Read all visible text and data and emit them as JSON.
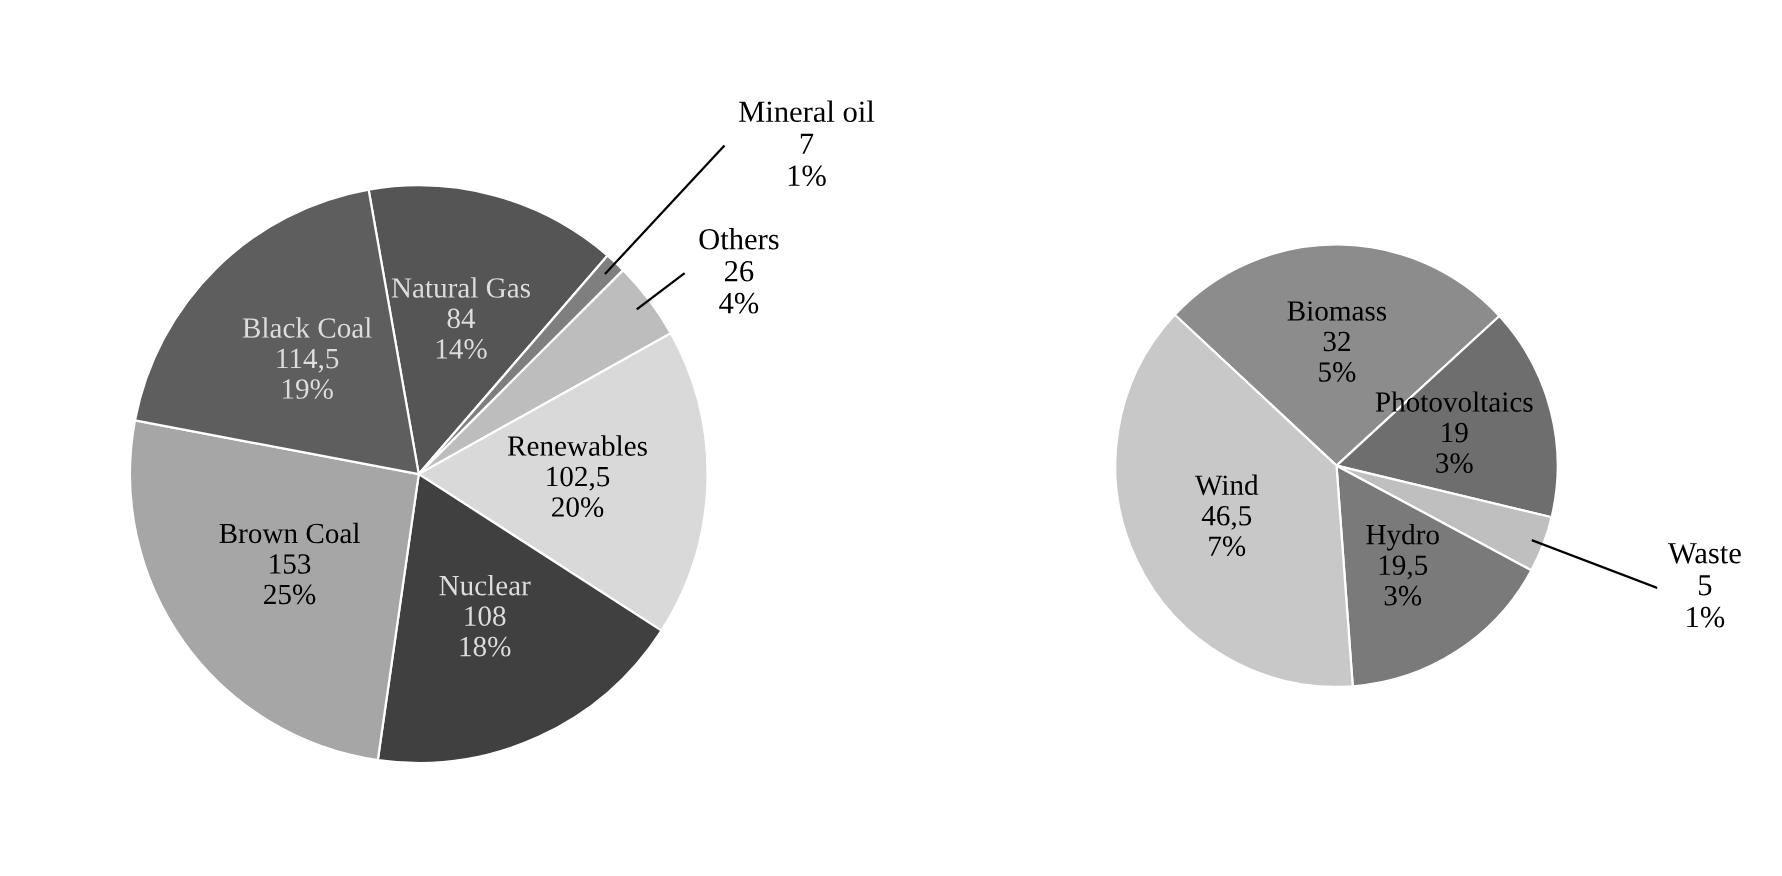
{
  "chart_data": [
    {
      "type": "pie",
      "categories": [
        "Natural Gas",
        "Mineral oil",
        "Others",
        "Renewables",
        "Nuclear",
        "Brown Coal",
        "Black Coal"
      ],
      "values": [
        84,
        7,
        26,
        102.5,
        108,
        153,
        114.5
      ],
      "colors": [
        "#555555",
        "#7f7f7f",
        "#bdbdbd",
        "#d9d9d9",
        "#404040",
        "#a6a6a6",
        "#5e5e5e"
      ],
      "value_labels": [
        "84\n14%",
        "7\n1%",
        "26\n4%",
        "102,5\n20%",
        "108\n18%",
        "153\n25%",
        "114,5\n19%"
      ]
    },
    {
      "type": "pie",
      "categories": [
        "Biomass",
        "Photovoltaics",
        "Waste",
        "Hydro",
        "Wind"
      ],
      "values": [
        32,
        19,
        5,
        19.5,
        46.5
      ],
      "colors": [
        "#8c8c8c",
        "#6e6e6e",
        "#bfbfbf",
        "#7a7a7a",
        "#c8c8c8"
      ],
      "value_labels": [
        "32\n5%",
        "19\n3%",
        "5\n1%",
        "19,5\n3%",
        "46,5\n7%"
      ]
    }
  ]
}
